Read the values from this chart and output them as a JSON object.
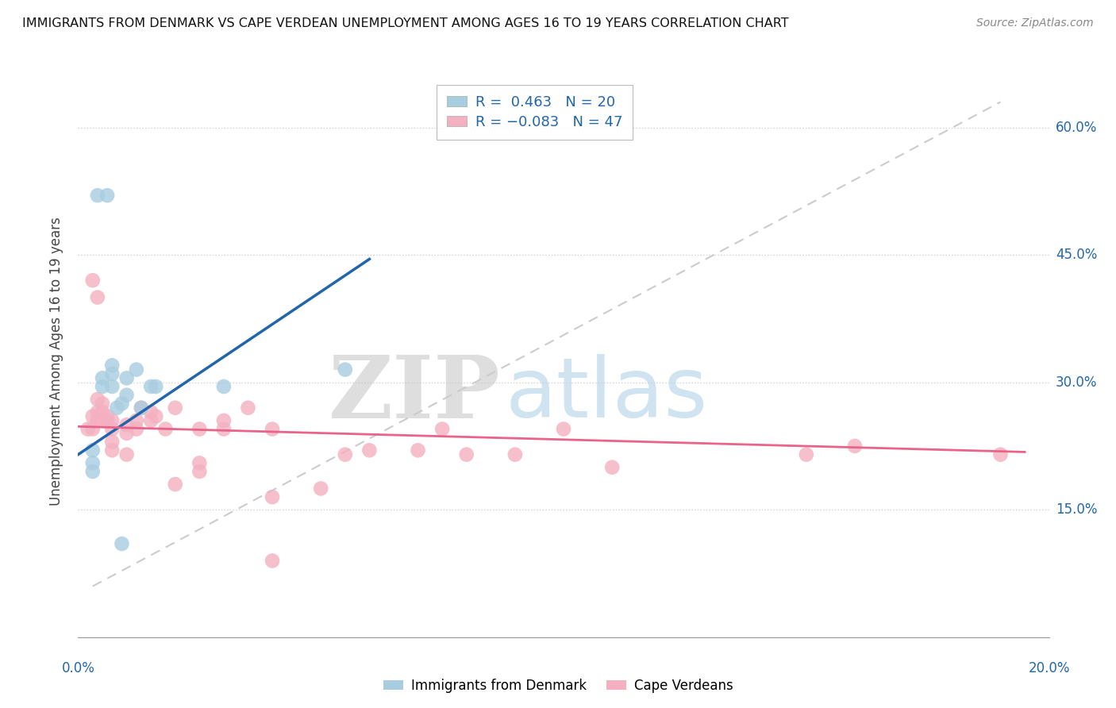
{
  "title": "IMMIGRANTS FROM DENMARK VS CAPE VERDEAN UNEMPLOYMENT AMONG AGES 16 TO 19 YEARS CORRELATION CHART",
  "source": "Source: ZipAtlas.com",
  "ylabel": "Unemployment Among Ages 16 to 19 years",
  "xlim": [
    0.0,
    0.2
  ],
  "ylim": [
    0.0,
    0.65
  ],
  "ytick_vals": [
    0.0,
    0.15,
    0.3,
    0.45,
    0.6
  ],
  "ytick_labels": [
    "",
    "15.0%",
    "30.0%",
    "45.0%",
    "60.0%"
  ],
  "blue_color": "#a8cce0",
  "pink_color": "#f4b0c0",
  "blue_line_color": "#2166ac",
  "pink_line_color": "#e8648a",
  "denmark_points": [
    [
      0.003,
      0.205
    ],
    [
      0.003,
      0.195
    ],
    [
      0.003,
      0.22
    ],
    [
      0.005,
      0.295
    ],
    [
      0.005,
      0.305
    ],
    [
      0.007,
      0.32
    ],
    [
      0.007,
      0.31
    ],
    [
      0.007,
      0.295
    ],
    [
      0.008,
      0.27
    ],
    [
      0.009,
      0.275
    ],
    [
      0.01,
      0.305
    ],
    [
      0.01,
      0.285
    ],
    [
      0.012,
      0.315
    ],
    [
      0.013,
      0.27
    ],
    [
      0.015,
      0.295
    ],
    [
      0.016,
      0.295
    ],
    [
      0.03,
      0.295
    ],
    [
      0.055,
      0.315
    ],
    [
      0.004,
      0.52
    ],
    [
      0.006,
      0.52
    ],
    [
      0.009,
      0.11
    ]
  ],
  "capeverdean_points": [
    [
      0.002,
      0.245
    ],
    [
      0.003,
      0.245
    ],
    [
      0.003,
      0.26
    ],
    [
      0.004,
      0.255
    ],
    [
      0.004,
      0.265
    ],
    [
      0.004,
      0.28
    ],
    [
      0.005,
      0.275
    ],
    [
      0.005,
      0.265
    ],
    [
      0.005,
      0.255
    ],
    [
      0.006,
      0.26
    ],
    [
      0.006,
      0.255
    ],
    [
      0.007,
      0.255
    ],
    [
      0.007,
      0.245
    ],
    [
      0.007,
      0.23
    ],
    [
      0.007,
      0.22
    ],
    [
      0.01,
      0.25
    ],
    [
      0.01,
      0.24
    ],
    [
      0.01,
      0.215
    ],
    [
      0.012,
      0.255
    ],
    [
      0.012,
      0.245
    ],
    [
      0.013,
      0.27
    ],
    [
      0.015,
      0.265
    ],
    [
      0.015,
      0.255
    ],
    [
      0.016,
      0.26
    ],
    [
      0.018,
      0.245
    ],
    [
      0.02,
      0.27
    ],
    [
      0.02,
      0.18
    ],
    [
      0.025,
      0.195
    ],
    [
      0.025,
      0.245
    ],
    [
      0.025,
      0.205
    ],
    [
      0.03,
      0.245
    ],
    [
      0.03,
      0.255
    ],
    [
      0.035,
      0.27
    ],
    [
      0.04,
      0.245
    ],
    [
      0.04,
      0.165
    ],
    [
      0.04,
      0.09
    ],
    [
      0.05,
      0.175
    ],
    [
      0.055,
      0.215
    ],
    [
      0.06,
      0.22
    ],
    [
      0.07,
      0.22
    ],
    [
      0.075,
      0.245
    ],
    [
      0.08,
      0.215
    ],
    [
      0.09,
      0.215
    ],
    [
      0.1,
      0.245
    ],
    [
      0.11,
      0.2
    ],
    [
      0.15,
      0.215
    ],
    [
      0.19,
      0.215
    ],
    [
      0.003,
      0.42
    ],
    [
      0.004,
      0.4
    ],
    [
      0.16,
      0.225
    ]
  ],
  "blue_trendline": [
    [
      0.0,
      0.215
    ],
    [
      0.06,
      0.445
    ]
  ],
  "pink_trendline": [
    [
      0.0,
      0.248
    ],
    [
      0.195,
      0.218
    ]
  ],
  "dashed_line": [
    [
      0.003,
      0.06
    ],
    [
      0.19,
      0.63
    ]
  ]
}
